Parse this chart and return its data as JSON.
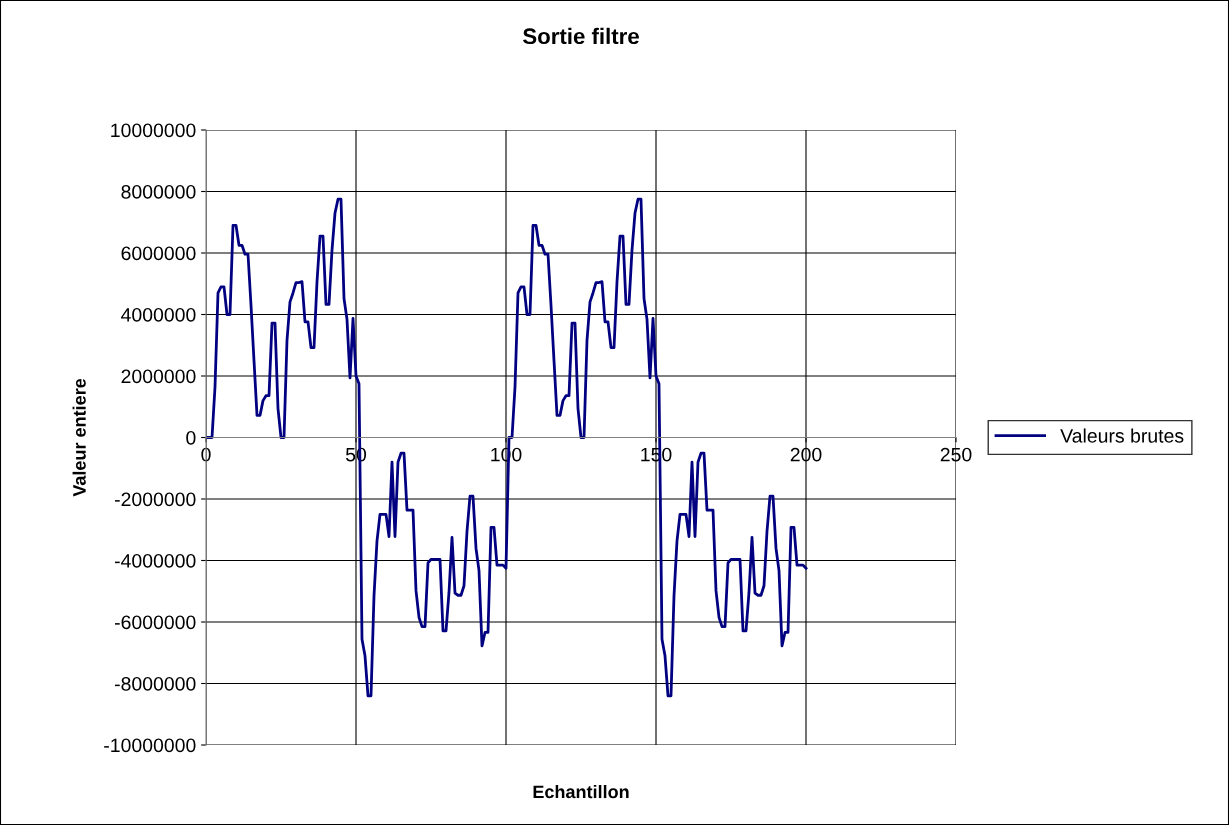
{
  "chart_data": {
    "type": "line",
    "title": "Sortie filtre",
    "xlabel": "Echantillon",
    "ylabel": "Valeur entiere",
    "x": [
      0,
      1,
      2,
      3,
      4,
      5,
      6,
      7,
      8,
      9,
      10,
      11,
      12,
      13,
      14,
      15,
      16,
      17,
      18,
      19,
      20,
      21,
      22,
      23,
      24,
      25,
      26,
      27,
      28,
      29,
      30,
      31,
      32,
      33,
      34,
      35,
      36,
      37,
      38,
      39,
      40,
      41,
      42,
      43,
      44,
      45,
      46,
      47,
      48,
      49,
      50,
      51,
      52,
      53,
      54,
      55,
      56,
      57,
      58,
      59,
      60,
      61,
      62,
      63,
      64,
      65,
      66,
      67,
      68,
      69,
      70,
      71,
      72,
      73,
      74,
      75,
      76,
      77,
      78,
      79,
      80,
      81,
      82,
      83,
      84,
      85,
      86,
      87,
      88,
      89,
      90,
      91,
      92,
      93,
      94,
      95,
      96,
      97,
      98,
      99,
      100,
      101,
      102,
      103,
      104,
      105,
      106,
      107,
      108,
      109,
      110,
      111,
      112,
      113,
      114,
      115,
      116,
      117,
      118,
      119,
      120,
      121,
      122,
      123,
      124,
      125,
      126,
      127,
      128,
      129,
      130,
      131,
      132,
      133,
      134,
      135,
      136,
      137,
      138,
      139,
      140,
      141,
      142,
      143,
      144,
      145,
      146,
      147,
      148,
      149,
      150,
      151,
      152,
      153,
      154,
      155,
      156,
      157,
      158,
      159,
      160,
      161,
      162,
      163,
      164,
      165,
      166,
      167,
      168,
      169,
      170,
      171,
      172,
      173,
      174,
      175,
      176,
      177,
      178,
      179,
      180,
      181,
      182,
      183,
      184,
      185,
      186,
      187,
      188,
      189,
      190,
      191,
      192,
      193,
      194,
      195,
      196,
      197,
      198,
      199,
      200
    ],
    "series": [
      {
        "name": "Valeurs brutes",
        "color": "#000080",
        "values": [
          0,
          0,
          0,
          1640000,
          4700000,
          4900000,
          4900000,
          4000000,
          4000000,
          6900000,
          6900000,
          6250000,
          6250000,
          5960000,
          5960000,
          4300000,
          2500000,
          720000,
          720000,
          1200000,
          1360000,
          1360000,
          3720000,
          3720000,
          940000,
          0,
          0,
          3160000,
          4410000,
          4700000,
          5040000,
          5040000,
          5070000,
          3760000,
          3760000,
          2920000,
          2920000,
          5060000,
          6550000,
          6550000,
          4330000,
          4330000,
          6090000,
          7300000,
          7750000,
          7750000,
          4520000,
          3840000,
          1940000,
          3870000,
          2000000,
          1750000,
          -6560000,
          -7100000,
          -8400000,
          -8400000,
          -5150000,
          -3360000,
          -2500000,
          -2500000,
          -2500000,
          -3220000,
          -800000,
          -3220000,
          -800000,
          -510000,
          -510000,
          -2360000,
          -2360000,
          -2360000,
          -4980000,
          -5850000,
          -6150000,
          -6150000,
          -4080000,
          -3960000,
          -3960000,
          -3960000,
          -3960000,
          -6290000,
          -6290000,
          -5040000,
          -3250000,
          -5060000,
          -5130000,
          -5130000,
          -4820000,
          -3050000,
          -1910000,
          -1910000,
          -3600000,
          -4330000,
          -6780000,
          -6340000,
          -6340000,
          -2920000,
          -2920000,
          -4150000,
          -4150000,
          -4150000,
          -4250000,
          0,
          0,
          1640000,
          4700000,
          4900000,
          4900000,
          4000000,
          4000000,
          6900000,
          6900000,
          6250000,
          6250000,
          5960000,
          5960000,
          4300000,
          2500000,
          720000,
          720000,
          1200000,
          1360000,
          1360000,
          3720000,
          3720000,
          940000,
          0,
          0,
          3160000,
          4410000,
          4700000,
          5040000,
          5040000,
          5070000,
          3760000,
          3760000,
          2920000,
          2920000,
          5060000,
          6550000,
          6550000,
          4330000,
          4330000,
          6090000,
          7300000,
          7750000,
          7750000,
          4520000,
          3840000,
          1940000,
          3870000,
          2000000,
          1750000,
          -6560000,
          -7100000,
          -8400000,
          -8400000,
          -5150000,
          -3360000,
          -2500000,
          -2500000,
          -2500000,
          -3220000,
          -800000,
          -3220000,
          -800000,
          -510000,
          -510000,
          -2360000,
          -2360000,
          -2360000,
          -4980000,
          -5850000,
          -6150000,
          -6150000,
          -4080000,
          -3960000,
          -3960000,
          -3960000,
          -3960000,
          -6290000,
          -6290000,
          -5040000,
          -3250000,
          -5060000,
          -5130000,
          -5130000,
          -4820000,
          -3050000,
          -1910000,
          -1910000,
          -3600000,
          -4330000,
          -6780000,
          -6340000,
          -6340000,
          -2920000,
          -2920000,
          -4150000,
          -4150000,
          -4150000,
          -4250000
        ]
      }
    ],
    "xlim": [
      0,
      250
    ],
    "xticks": [
      0,
      50,
      100,
      150,
      200,
      250
    ],
    "ylim": [
      -10000000,
      10000000
    ],
    "yticks": [
      -10000000,
      -8000000,
      -6000000,
      -4000000,
      -2000000,
      0,
      2000000,
      4000000,
      6000000,
      8000000,
      10000000
    ],
    "grid": true,
    "legend": "right",
    "marker": "none",
    "line_style": "solid"
  }
}
